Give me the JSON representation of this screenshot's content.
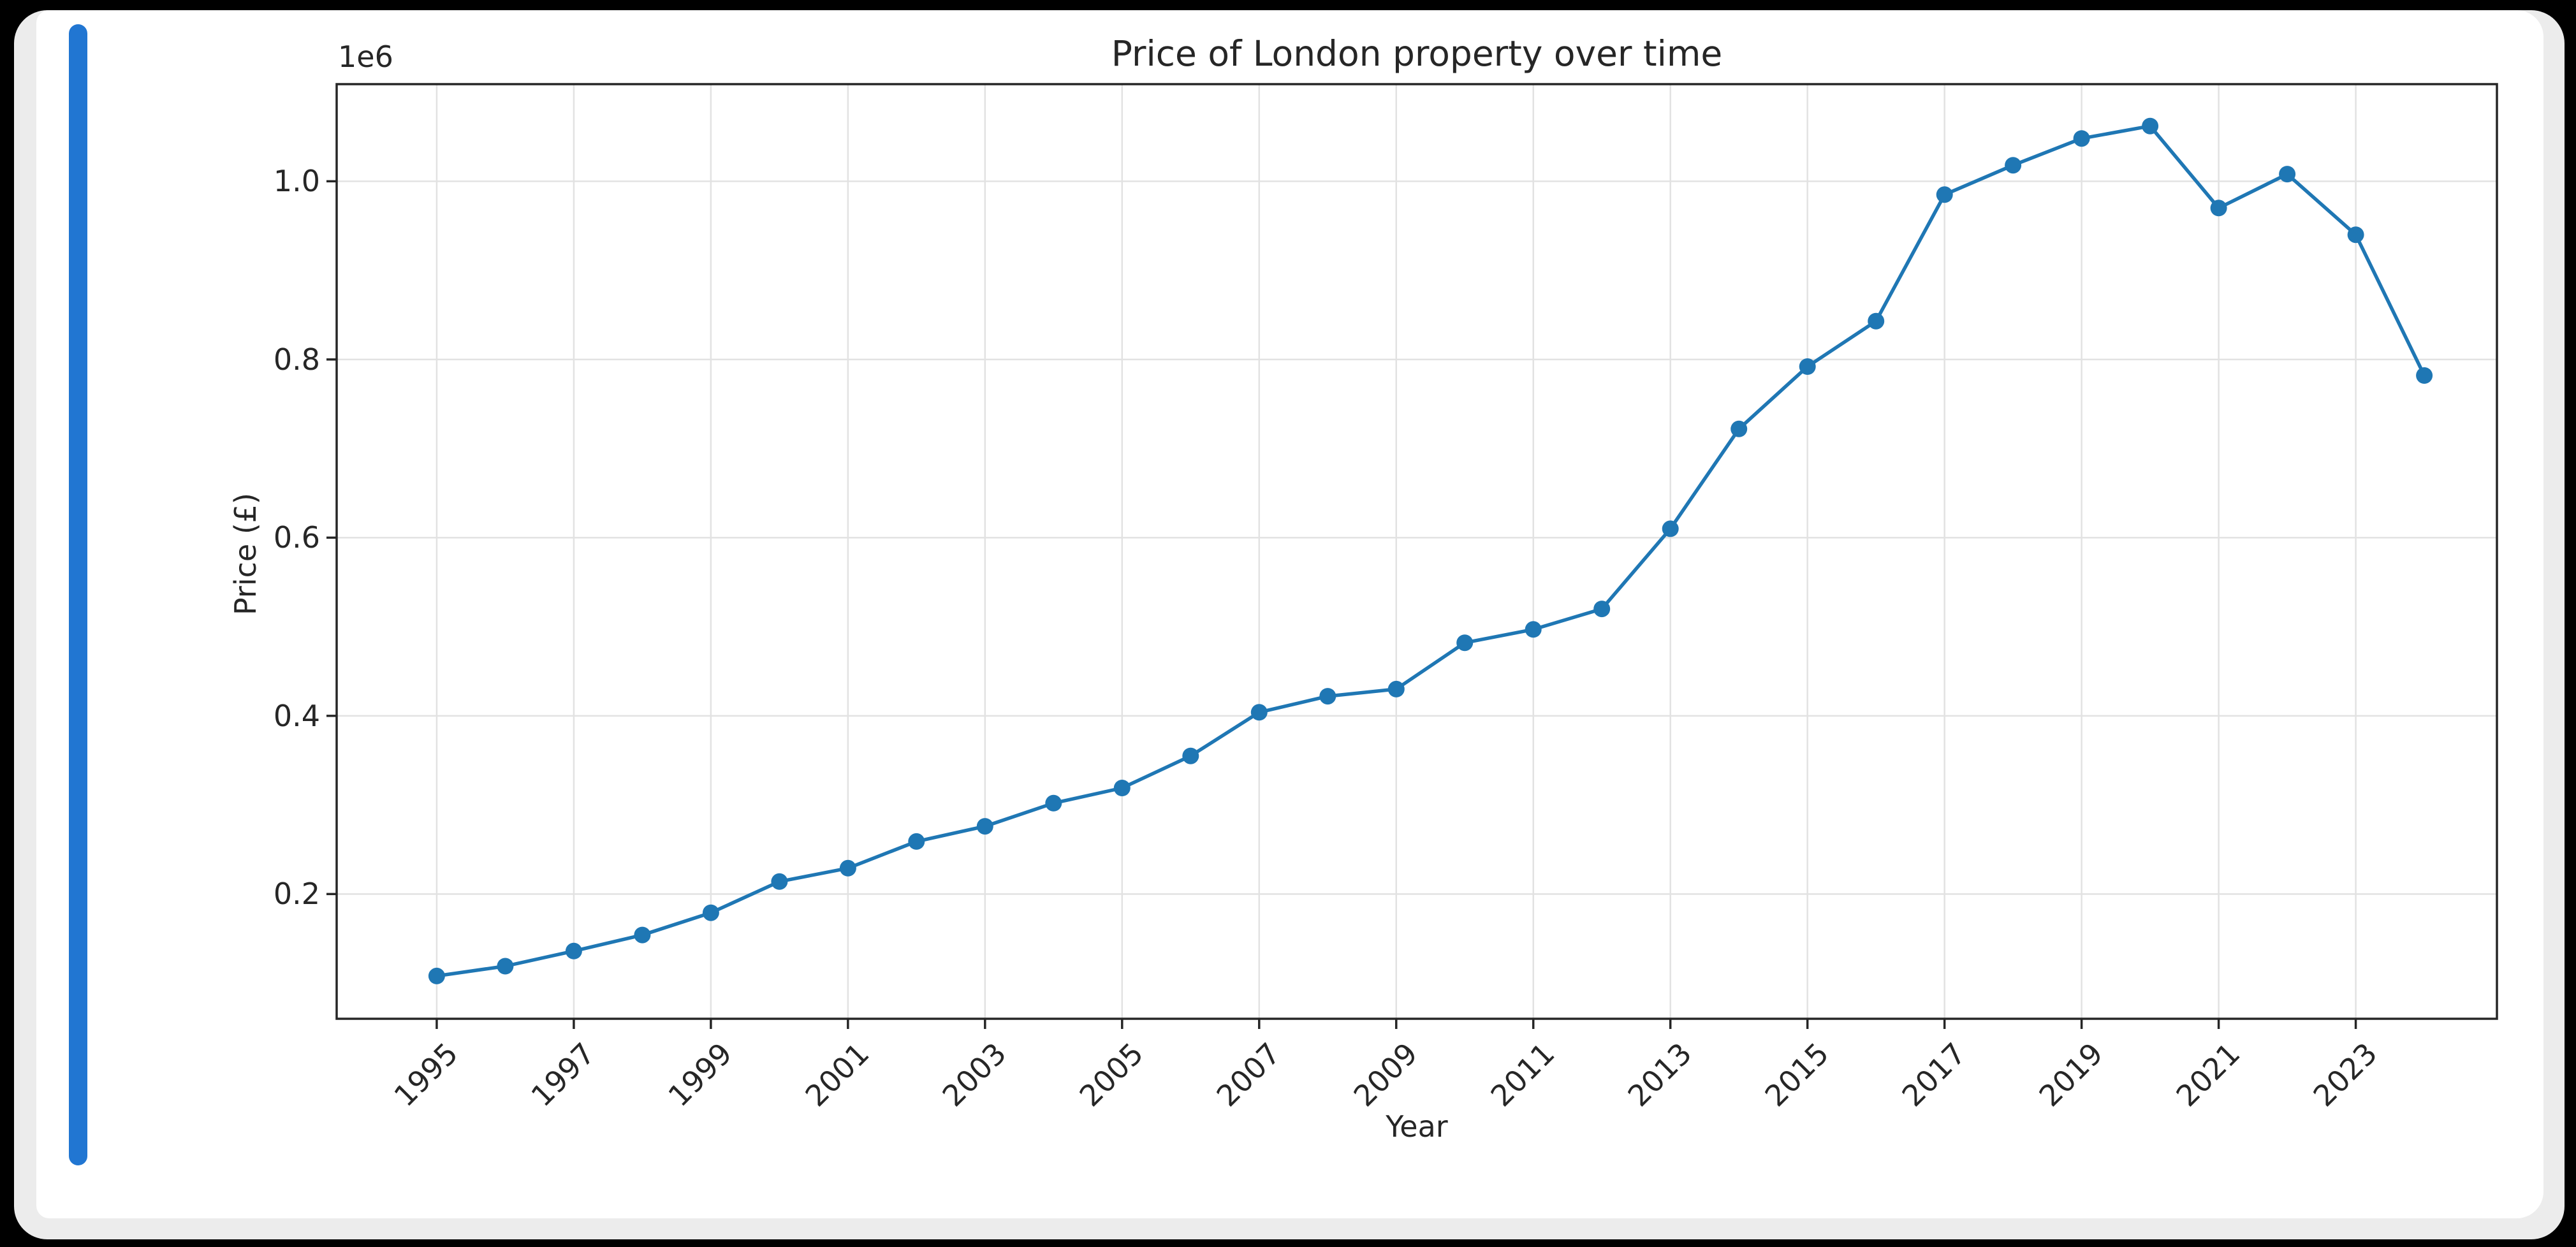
{
  "window": {
    "background_color": "#000000",
    "card_color": "#ffffff",
    "card_shadow_color": "#ececec",
    "accent_bar_color": "#2176d2"
  },
  "chart_data": {
    "type": "line",
    "title": "Price of London property over time",
    "xlabel": "Year",
    "ylabel": "Price (£)",
    "y_offset_label": "1e6",
    "grid": true,
    "legend": "none",
    "xlim": [
      1993.54,
      2025.06
    ],
    "ylim": [
      60000,
      1109000
    ],
    "x_ticks": [
      1995,
      1997,
      1999,
      2001,
      2003,
      2005,
      2007,
      2009,
      2011,
      2013,
      2015,
      2017,
      2019,
      2021,
      2023
    ],
    "y_ticks": [
      {
        "label": "0.2",
        "value": 200000
      },
      {
        "label": "0.4",
        "value": 400000
      },
      {
        "label": "0.6",
        "value": 600000
      },
      {
        "label": "0.8",
        "value": 800000
      },
      {
        "label": "1.0",
        "value": 1000000
      }
    ],
    "series": [
      {
        "name": "London property price",
        "color": "#1f77b4",
        "marker": "circle",
        "x": [
          1995,
          1996,
          1997,
          1998,
          1999,
          2000,
          2001,
          2002,
          2003,
          2004,
          2005,
          2006,
          2007,
          2008,
          2009,
          2010,
          2011,
          2012,
          2013,
          2014,
          2015,
          2016,
          2017,
          2018,
          2019,
          2020,
          2021,
          2022,
          2023,
          2024
        ],
        "y": [
          108000,
          119000,
          136000,
          154000,
          179000,
          214000,
          229000,
          259000,
          276000,
          302000,
          319000,
          355000,
          404000,
          422000,
          430000,
          482000,
          497000,
          520000,
          610000,
          722000,
          792000,
          843000,
          985000,
          1018000,
          1048000,
          1062000,
          970000,
          1008000,
          940000,
          782000
        ]
      }
    ],
    "style": {
      "grid_color": "#e2e2e2",
      "spine_color": "#262626",
      "tick_color": "#262626",
      "text_color": "#262626"
    }
  }
}
